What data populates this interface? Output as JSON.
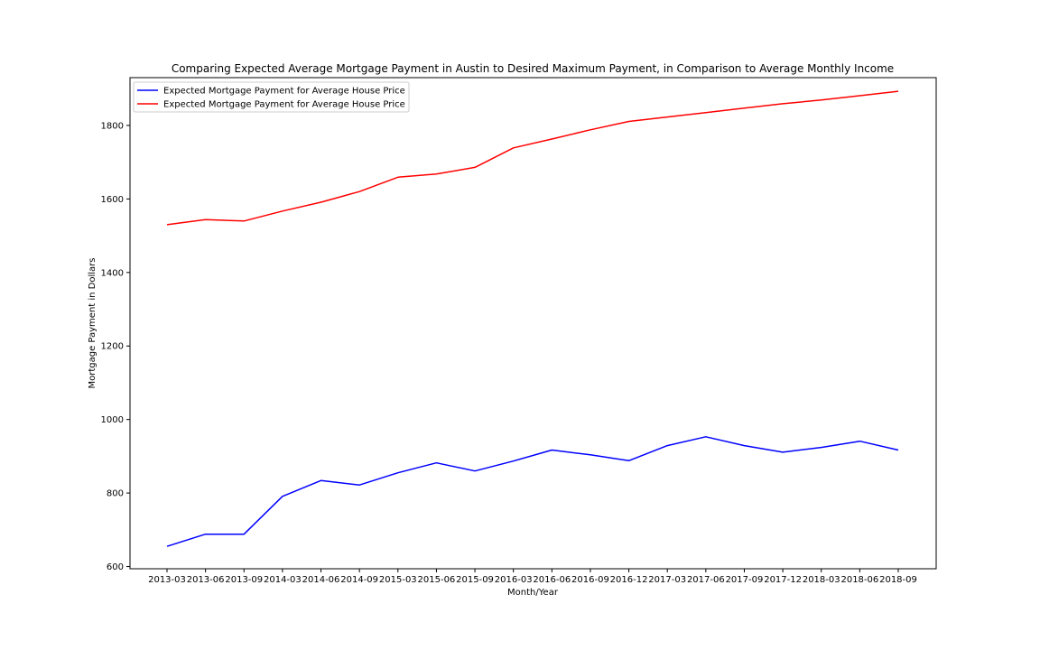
{
  "chart_data": {
    "type": "line",
    "title": "Comparing Expected Average Mortgage Payment in Austin to Desired Maximum Payment, in Comparison to Average Monthly Income",
    "xlabel": "Month/Year",
    "ylabel": "Mortgage Payment in Dollars",
    "categories": [
      "2013-03",
      "2013-06",
      "2013-09",
      "2014-03",
      "2014-06",
      "2014-09",
      "2015-03",
      "2015-06",
      "2015-09",
      "2016-03",
      "2016-06",
      "2016-09",
      "2016-12",
      "2017-03",
      "2017-06",
      "2017-09",
      "2017-12",
      "2018-03",
      "2018-06",
      "2018-09"
    ],
    "ylim": [
      594,
      1930
    ],
    "yticks": [
      600,
      800,
      1000,
      1200,
      1400,
      1600,
      1800
    ],
    "grid": false,
    "legend_position": "upper-left",
    "series": [
      {
        "name": "Expected Mortgage Payment for Average House Price",
        "color": "#0000ff",
        "values": [
          655,
          688,
          688,
          791,
          834,
          822,
          855,
          882,
          860,
          887,
          917,
          904,
          888,
          929,
          953,
          929,
          911,
          924,
          941,
          917
        ]
      },
      {
        "name": "Expected Mortgage Payment for Average House Price",
        "color": "#ff0000",
        "values": [
          1530,
          1544,
          1540,
          1567,
          1591,
          1620,
          1659,
          1668,
          1686,
          1739,
          1763,
          1788,
          1811,
          1823,
          1835,
          1847,
          1859,
          1869,
          1881,
          1893
        ]
      }
    ]
  }
}
